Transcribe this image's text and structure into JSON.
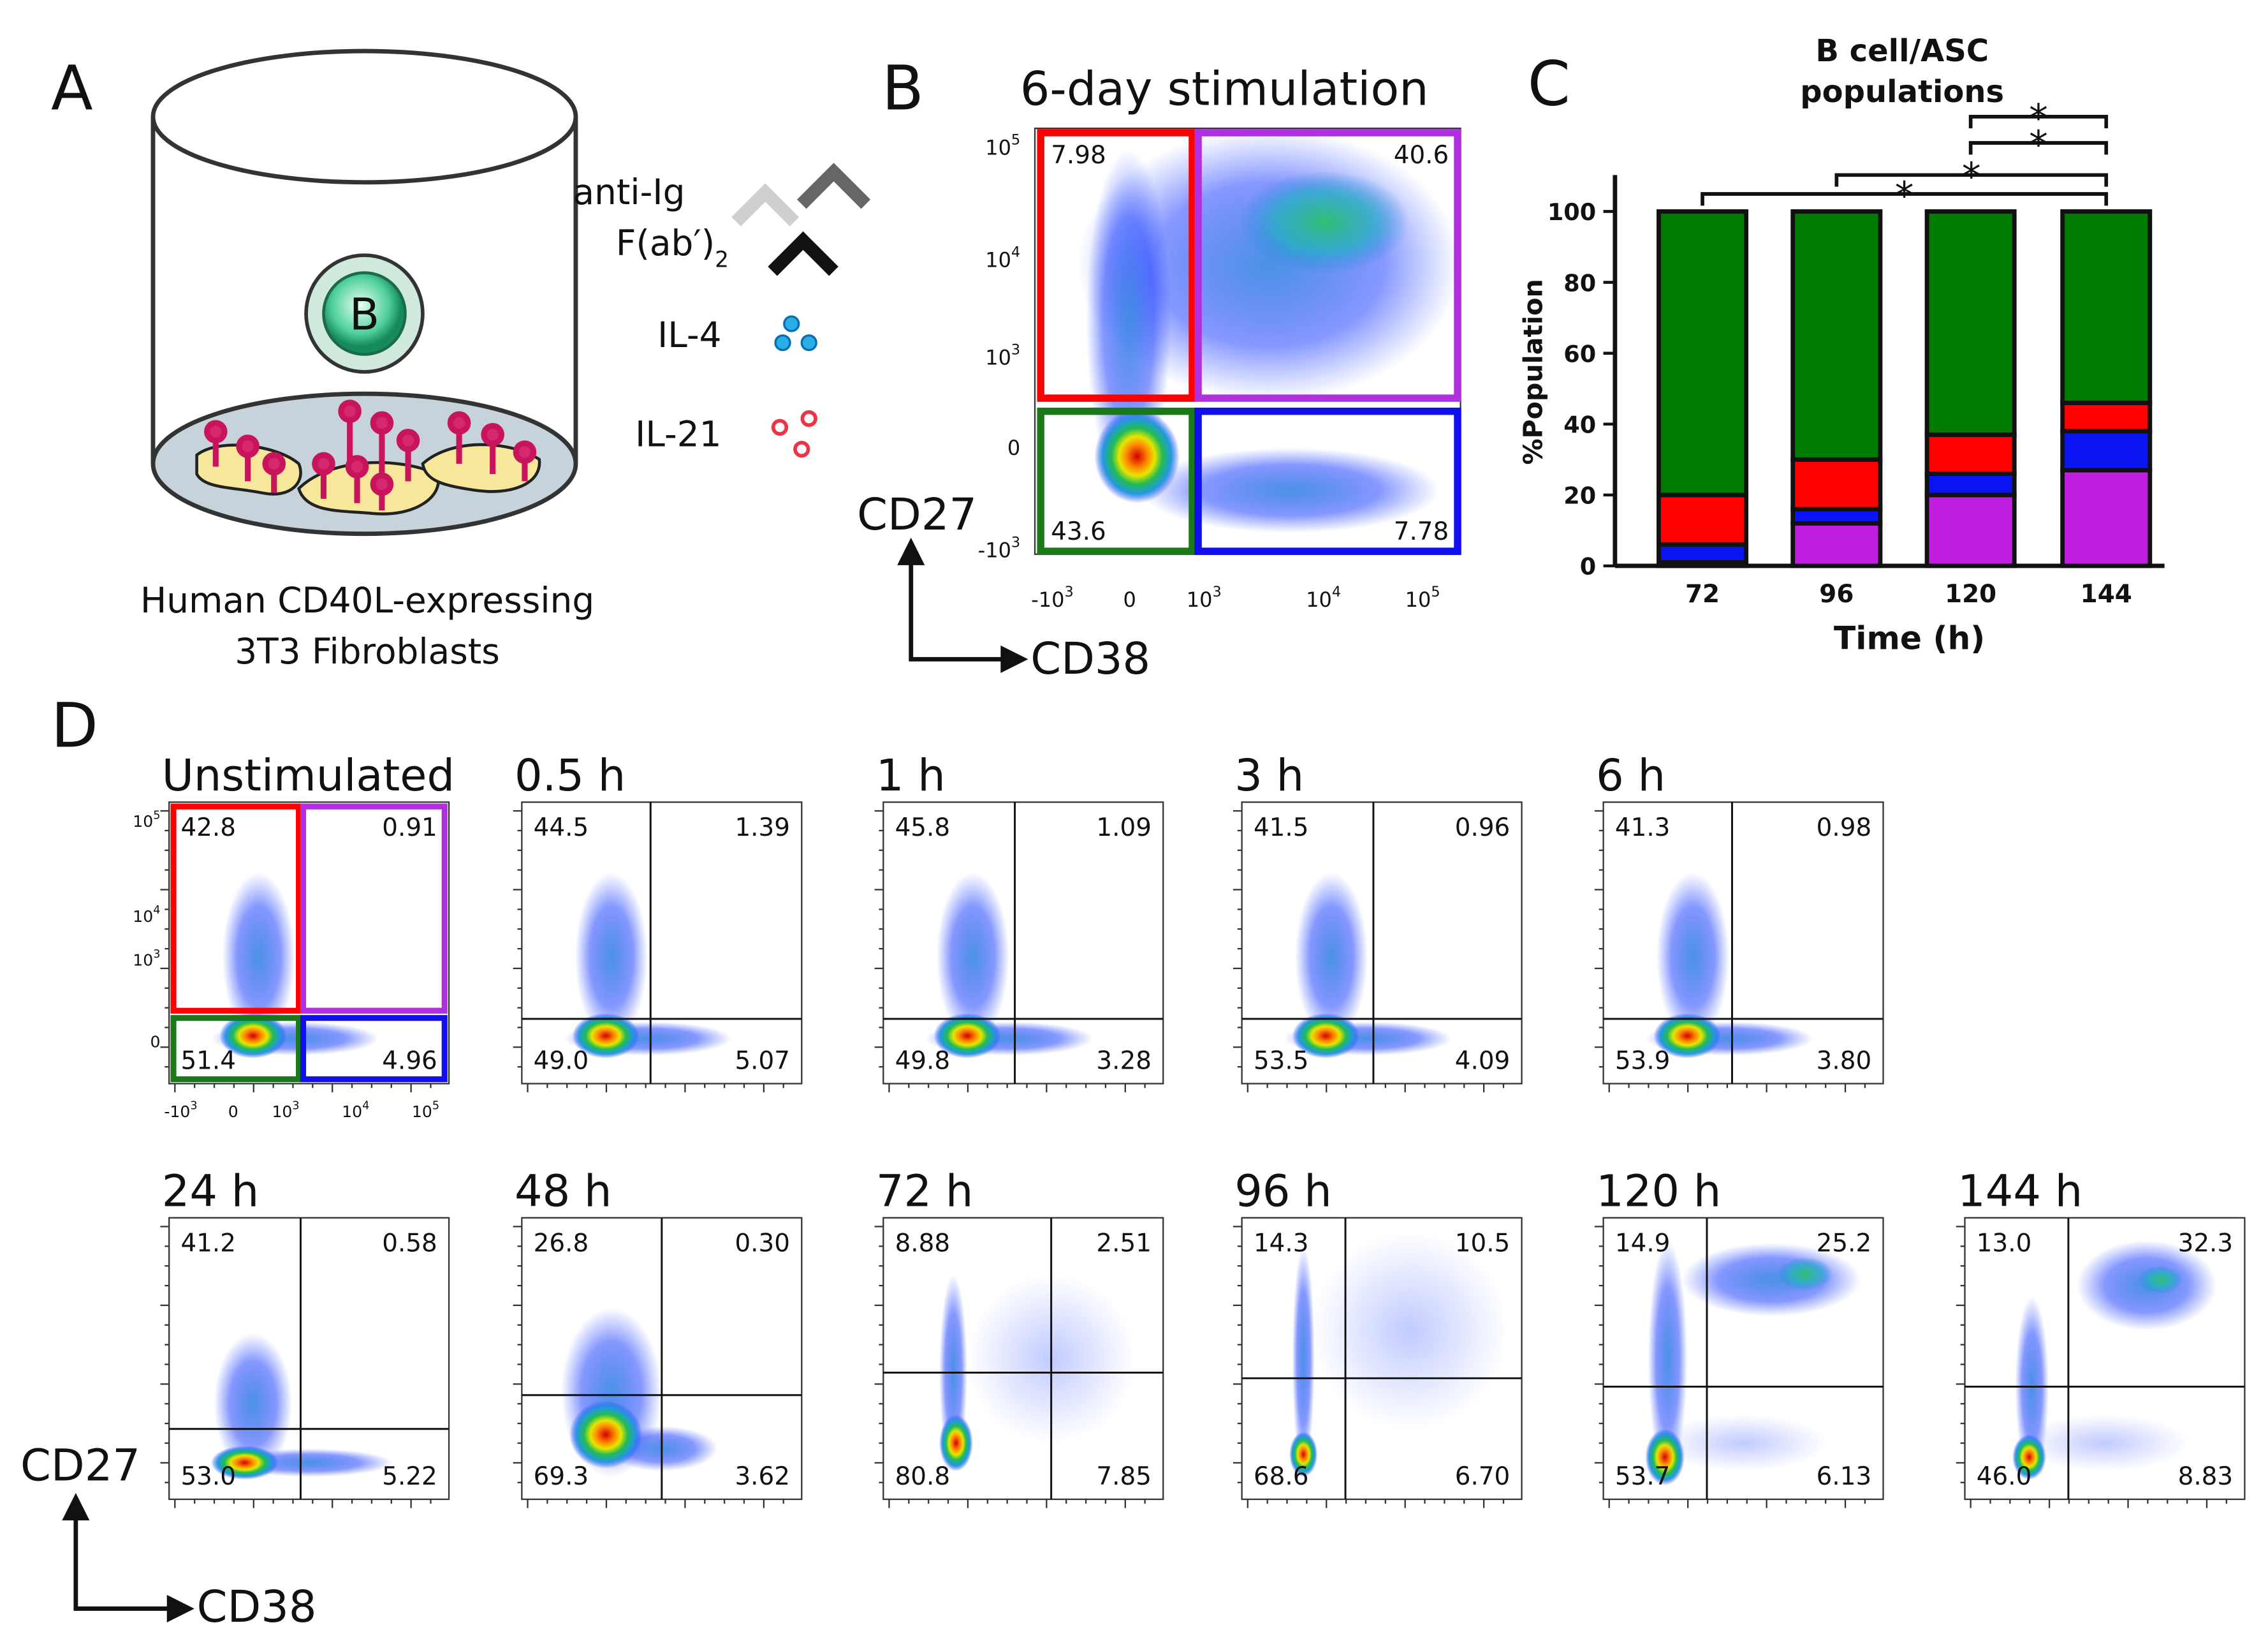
{
  "panel_a": {
    "letter": "A",
    "anti_ig": "anti-Ig",
    "fab": "F(ab′)",
    "fab_sub": "2",
    "il4": "IL-4",
    "il21": "IL-21",
    "cell": "B",
    "caption": [
      "Human CD40L-expressing",
      "3T3 Fibroblasts"
    ]
  },
  "panel_b": {
    "letter": "B",
    "title": "6-day stimulation",
    "quadrants": [
      "7.98",
      "40.6",
      "43.6",
      "7.78"
    ],
    "y_axis_label": "CD27",
    "x_axis_label": "CD38",
    "yticks": [
      {
        "base": "10",
        "exp": "5"
      },
      {
        "base": "10",
        "exp": "4"
      },
      {
        "base": "10",
        "exp": "3"
      },
      {
        "base": "0"
      },
      {
        "base": "-10",
        "exp": "3"
      }
    ],
    "xticks": [
      {
        "base": "-10",
        "exp": "3"
      },
      {
        "base": "0"
      },
      {
        "base": "10",
        "exp": "3"
      },
      {
        "base": "10",
        "exp": "4"
      },
      {
        "base": "10",
        "exp": "5"
      }
    ]
  },
  "chart_data": {
    "type": "bar",
    "stacked": true,
    "letter": "C",
    "title": [
      "B cell/ASC",
      "populations"
    ],
    "x_label": "Time (h)",
    "y_label": "%Population",
    "categories": [
      "72",
      "96",
      "120",
      "144"
    ],
    "series": [
      {
        "color": "#c21ee0",
        "values": [
          1,
          12,
          20,
          27
        ]
      },
      {
        "color": "#0a14f0",
        "values": [
          5,
          4,
          6,
          11
        ]
      },
      {
        "color": "#ff0000",
        "values": [
          14,
          14,
          11,
          8
        ]
      },
      {
        "color": "#007a00",
        "values": [
          80,
          70,
          63,
          54
        ]
      }
    ],
    "ylim": [
      0,
      100
    ],
    "yticks": [
      0,
      20,
      40,
      60,
      80,
      100
    ],
    "annotations": [
      {
        "text": "*",
        "color": "#c21ee0"
      },
      {
        "text": "*",
        "color": "#0a14f0"
      },
      {
        "text": "*",
        "color": "#0a14f0"
      },
      {
        "text": "*",
        "color": "#119911"
      }
    ]
  },
  "panel_d": {
    "letter": "D",
    "y_axis_label": "CD27",
    "x_axis_label": "CD38",
    "yticks": [
      {
        "base": "10",
        "exp": "5"
      },
      {
        "base": "10",
        "exp": "4"
      },
      {
        "base": "10",
        "exp": "3"
      },
      {
        "base": "0"
      }
    ],
    "xticks": [
      {
        "base": "-10",
        "exp": "3"
      },
      {
        "base": "0"
      },
      {
        "base": "10",
        "exp": "3"
      },
      {
        "base": "10",
        "exp": "4"
      },
      {
        "base": "10",
        "exp": "5"
      }
    ],
    "plots": [
      {
        "title": "Unstimulated",
        "quadrants": [
          "42.8",
          "0.91",
          "51.4",
          "4.96"
        ]
      },
      {
        "title": "0.5 h",
        "quadrants": [
          "44.5",
          "1.39",
          "49.0",
          "5.07"
        ]
      },
      {
        "title": "1 h",
        "quadrants": [
          "45.8",
          "1.09",
          "49.8",
          "3.28"
        ]
      },
      {
        "title": "3 h",
        "quadrants": [
          "41.5",
          "0.96",
          "53.5",
          "4.09"
        ]
      },
      {
        "title": "6 h",
        "quadrants": [
          "41.3",
          "0.98",
          "53.9",
          "3.80"
        ]
      },
      {
        "title": "24 h",
        "quadrants": [
          "41.2",
          "0.58",
          "53.0",
          "5.22"
        ]
      },
      {
        "title": "48 h",
        "quadrants": [
          "26.8",
          "0.30",
          "69.3",
          "3.62"
        ]
      },
      {
        "title": "72 h",
        "quadrants": [
          "8.88",
          "2.51",
          "80.8",
          "7.85"
        ]
      },
      {
        "title": "96 h",
        "quadrants": [
          "14.3",
          "10.5",
          "68.6",
          "6.70"
        ]
      },
      {
        "title": "120 h",
        "quadrants": [
          "14.9",
          "25.2",
          "53.7",
          "6.13"
        ]
      },
      {
        "title": "144 h",
        "quadrants": [
          "13.0",
          "32.3",
          "46.0",
          "8.83"
        ]
      }
    ]
  }
}
